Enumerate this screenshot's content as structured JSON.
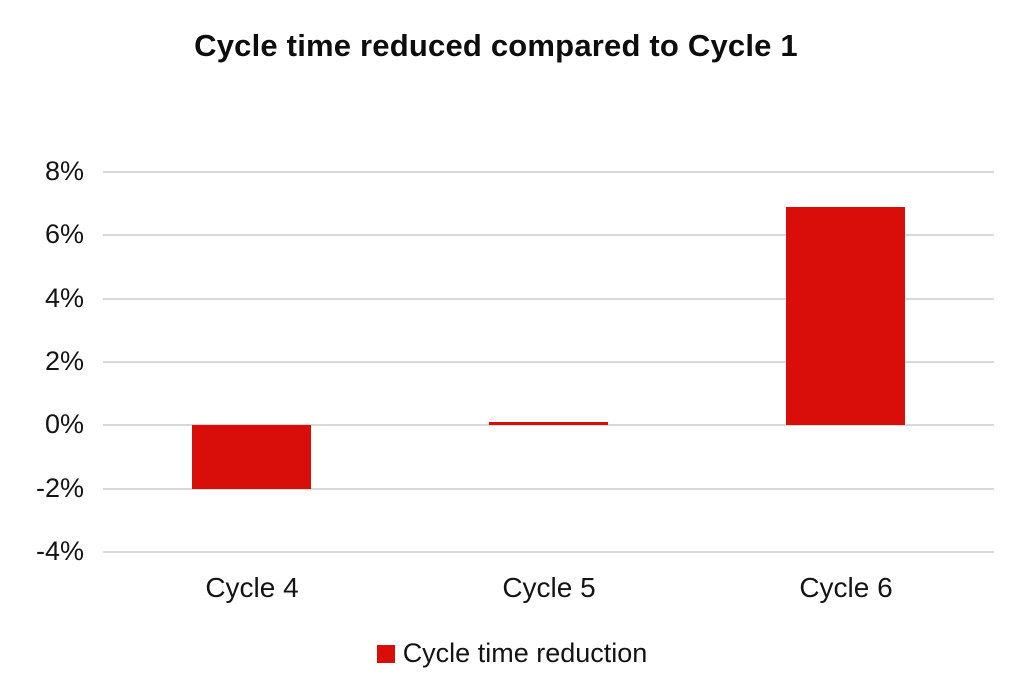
{
  "chart_data": {
    "type": "bar",
    "title": "Cycle time reduced compared to Cycle 1",
    "categories": [
      "Cycle 4",
      "Cycle 5",
      "Cycle 6"
    ],
    "series": [
      {
        "name": "Cycle time reduction",
        "values": [
          -2.0,
          0.1,
          6.9
        ]
      }
    ],
    "xlabel": "",
    "ylabel": "",
    "ylim": [
      -4,
      8
    ],
    "yticks": [
      8,
      6,
      4,
      2,
      0,
      -2,
      -4
    ],
    "ytick_labels": [
      "8%",
      "6%",
      "4%",
      "2%",
      "0%",
      "-2%",
      "-4%"
    ],
    "grid": "horizontal",
    "legend_position": "bottom",
    "legend_entries": [
      "Cycle time reduction"
    ],
    "colors": {
      "bar": "#d90d09",
      "grid": "#d8d8d8",
      "text": "#111111",
      "background": "#ffffff"
    }
  }
}
